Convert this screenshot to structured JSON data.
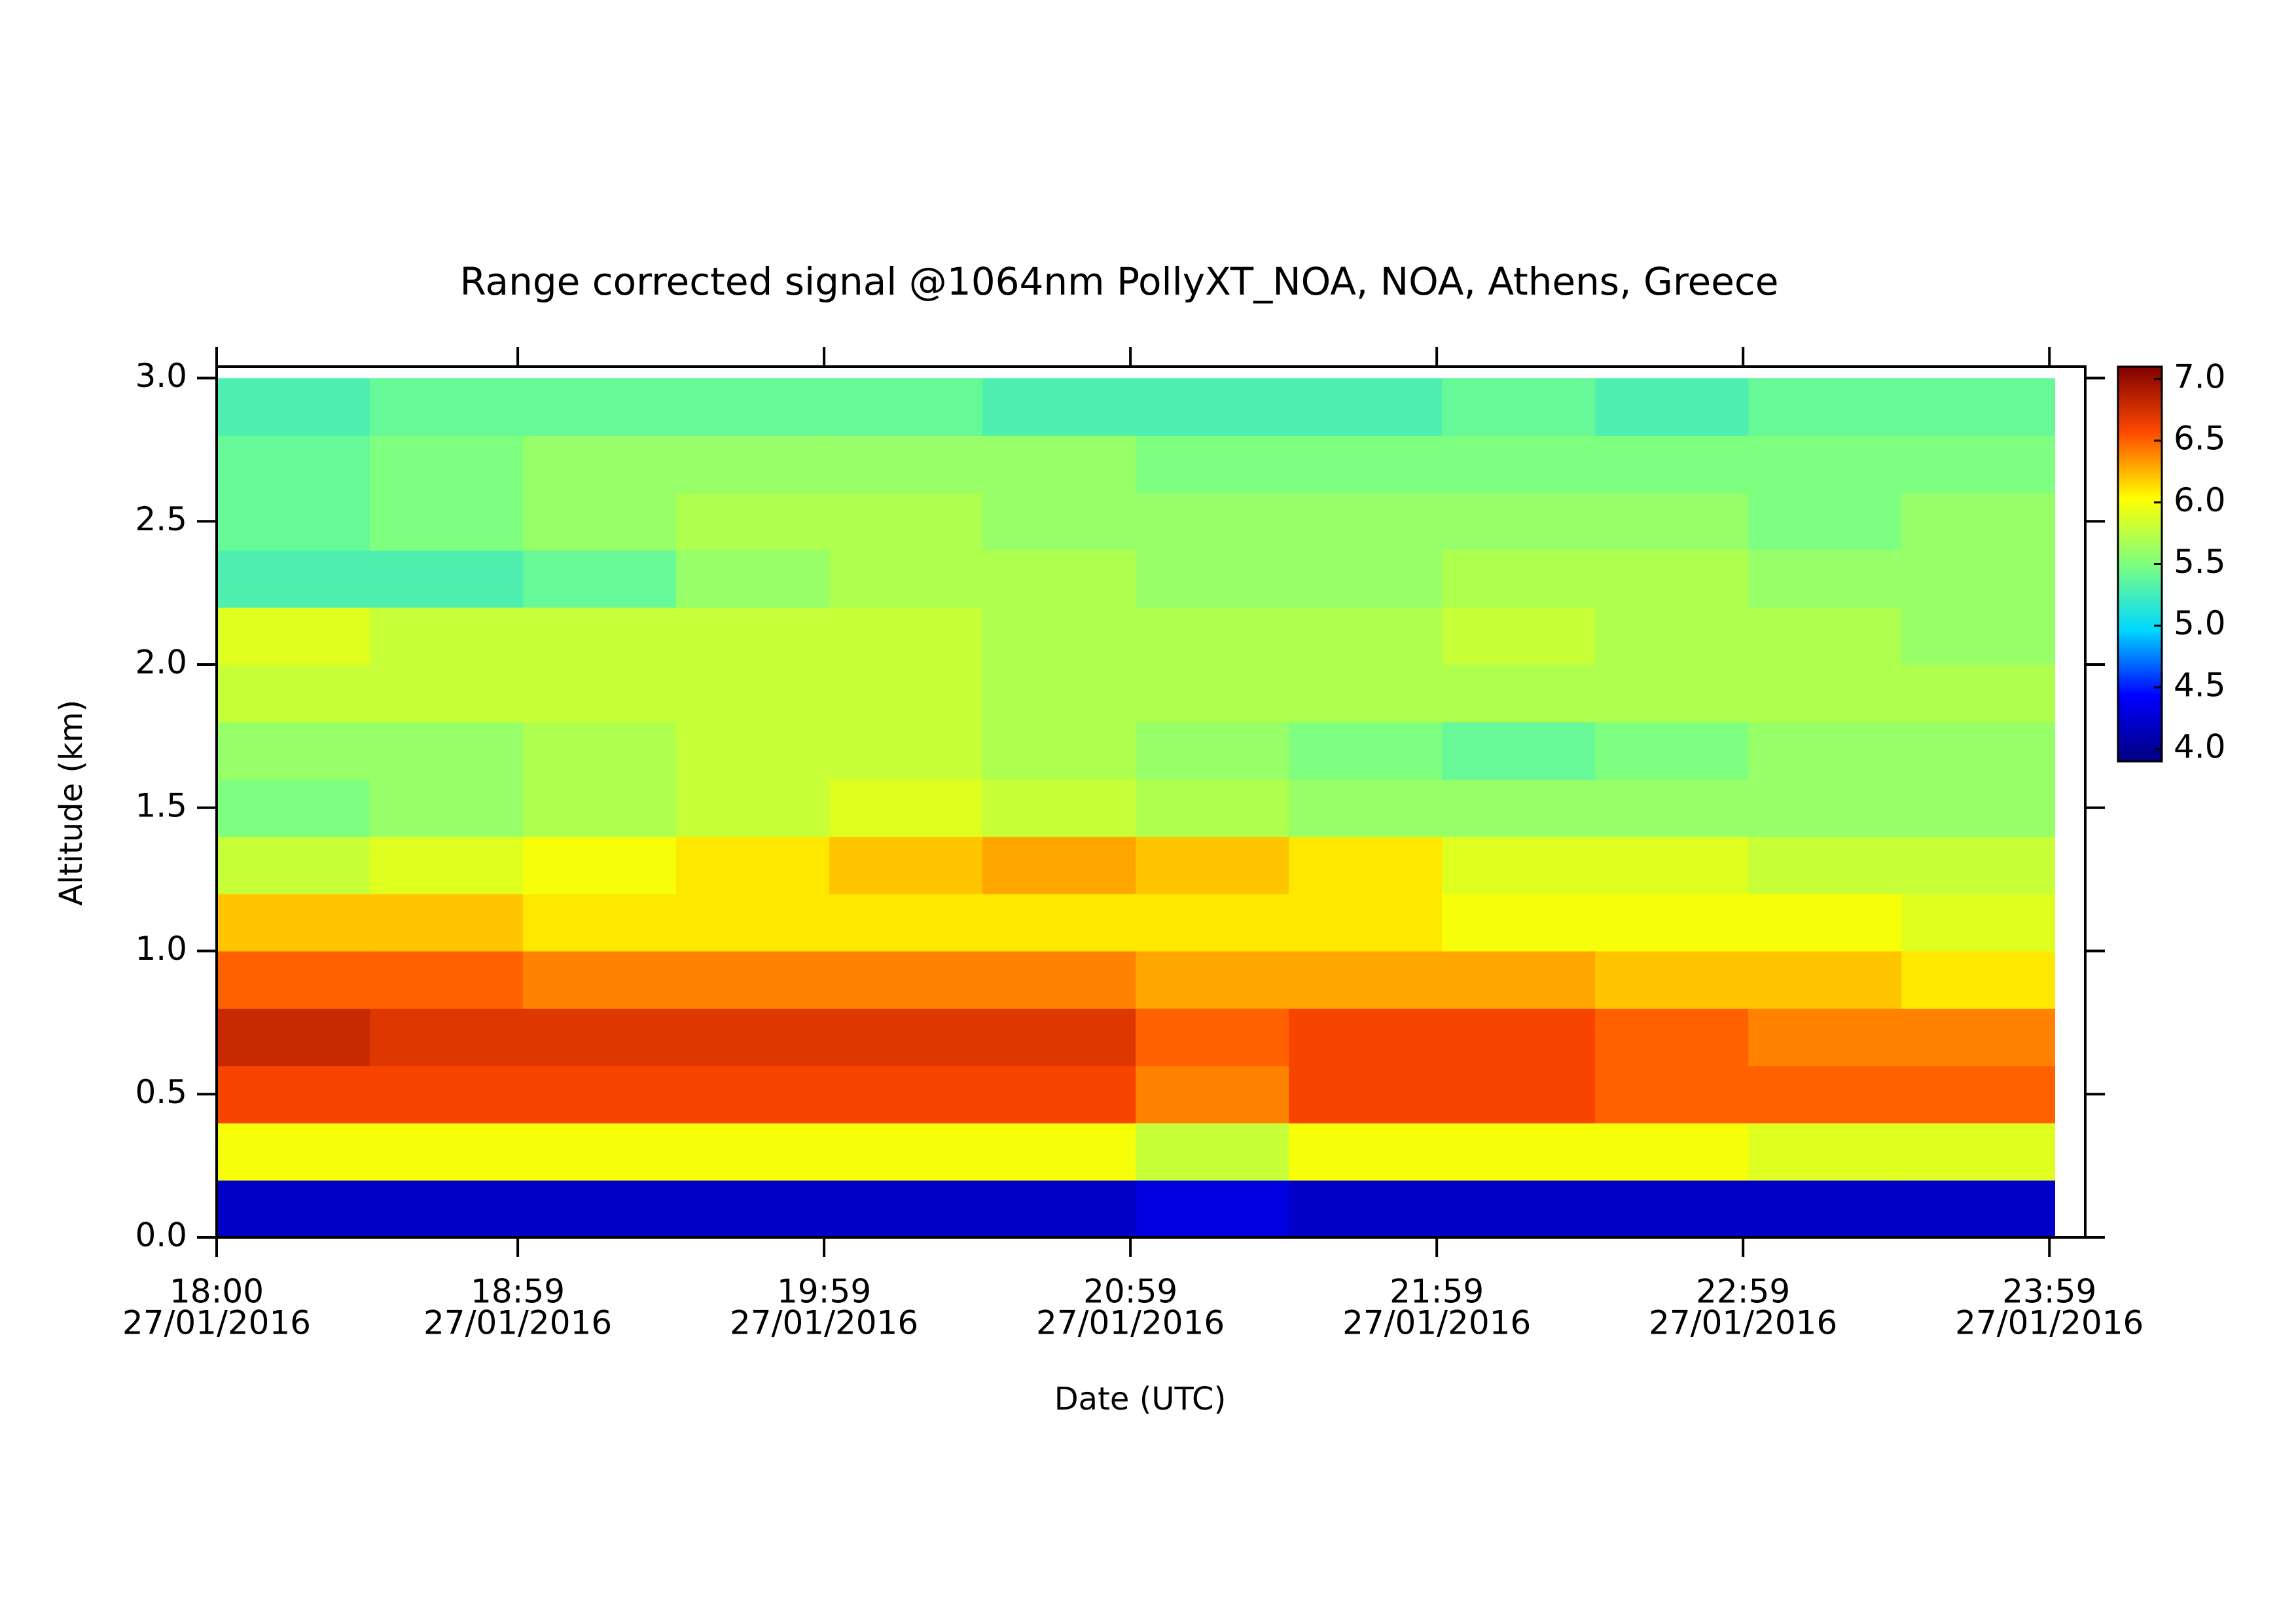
{
  "chart_data": {
    "type": "heatmap",
    "title": "Range corrected signal @1064nm  PollyXT_NOA, NOA, Athens, Greece",
    "x_label": "Date (UTC)",
    "y_label": "Altitude (km)",
    "x": [
      18.25,
      18.75,
      19.25,
      19.75,
      20.25,
      20.75,
      21.25,
      21.75,
      22.25,
      22.75,
      23.25,
      23.75
    ],
    "y": [
      0.1,
      0.3,
      0.5,
      0.7,
      0.9,
      1.1,
      1.3,
      1.5,
      1.7,
      1.9,
      2.1,
      2.3,
      2.5,
      2.7,
      2.9
    ],
    "z": [
      [
        4.2,
        4.2,
        4.2,
        4.2,
        4.2,
        4.2,
        4.3,
        4.2,
        4.2,
        4.2,
        4.2,
        4.2
      ],
      [
        6.0,
        6.0,
        6.0,
        6.0,
        6.0,
        6.0,
        5.8,
        6.0,
        6.0,
        6.0,
        5.9,
        5.9
      ],
      [
        6.6,
        6.6,
        6.6,
        6.6,
        6.6,
        6.6,
        6.4,
        6.6,
        6.6,
        6.5,
        6.5,
        6.5
      ],
      [
        6.8,
        6.7,
        6.7,
        6.7,
        6.7,
        6.7,
        6.5,
        6.6,
        6.6,
        6.5,
        6.4,
        6.4
      ],
      [
        6.5,
        6.5,
        6.4,
        6.4,
        6.4,
        6.4,
        6.3,
        6.3,
        6.3,
        6.2,
        6.2,
        6.1
      ],
      [
        6.2,
        6.2,
        6.1,
        6.1,
        6.1,
        6.1,
        6.1,
        6.1,
        6.0,
        6.0,
        6.0,
        5.9
      ],
      [
        5.8,
        5.9,
        6.0,
        6.1,
        6.2,
        6.3,
        6.2,
        6.1,
        5.9,
        5.9,
        5.8,
        5.8
      ],
      [
        5.5,
        5.6,
        5.7,
        5.8,
        5.9,
        5.8,
        5.7,
        5.6,
        5.6,
        5.6,
        5.6,
        5.6
      ],
      [
        5.6,
        5.6,
        5.7,
        5.8,
        5.8,
        5.7,
        5.6,
        5.5,
        5.4,
        5.5,
        5.6,
        5.6
      ],
      [
        5.8,
        5.8,
        5.8,
        5.8,
        5.8,
        5.7,
        5.7,
        5.7,
        5.7,
        5.7,
        5.7,
        5.7
      ],
      [
        5.9,
        5.8,
        5.8,
        5.8,
        5.8,
        5.7,
        5.7,
        5.7,
        5.8,
        5.7,
        5.7,
        5.6
      ],
      [
        5.3,
        5.3,
        5.4,
        5.6,
        5.7,
        5.7,
        5.6,
        5.6,
        5.7,
        5.7,
        5.6,
        5.6
      ],
      [
        5.4,
        5.5,
        5.6,
        5.7,
        5.7,
        5.6,
        5.6,
        5.6,
        5.6,
        5.6,
        5.5,
        5.6
      ],
      [
        5.4,
        5.5,
        5.6,
        5.6,
        5.6,
        5.6,
        5.5,
        5.5,
        5.5,
        5.5,
        5.5,
        5.5
      ],
      [
        5.3,
        5.4,
        5.4,
        5.4,
        5.4,
        5.3,
        5.3,
        5.3,
        5.4,
        5.3,
        5.4,
        5.4
      ]
    ],
    "xlim": [
      18,
      24.1
    ],
    "ylim": [
      0,
      3.04
    ],
    "zlim": [
      3.9,
      7.1
    ],
    "xticks": [
      {
        "value": 18.0,
        "label": "18:00",
        "date": "27/01/2016"
      },
      {
        "value": 18.983,
        "label": "18:59",
        "date": "27/01/2016"
      },
      {
        "value": 19.983,
        "label": "19:59",
        "date": "27/01/2016"
      },
      {
        "value": 20.983,
        "label": "20:59",
        "date": "27/01/2016"
      },
      {
        "value": 21.983,
        "label": "21:59",
        "date": "27/01/2016"
      },
      {
        "value": 22.983,
        "label": "22:59",
        "date": "27/01/2016"
      },
      {
        "value": 23.983,
        "label": "23:59",
        "date": "27/01/2016"
      }
    ],
    "yticks": [
      {
        "value": 0,
        "label": "0.0"
      },
      {
        "value": 0.5,
        "label": "0.5"
      },
      {
        "value": 1,
        "label": "1.0"
      },
      {
        "value": 1.5,
        "label": "1.5"
      },
      {
        "value": 2,
        "label": "2.0"
      },
      {
        "value": 2.5,
        "label": "2.5"
      },
      {
        "value": 3,
        "label": "3.0"
      }
    ],
    "zticks": [
      {
        "value": 4,
        "label": "4.0"
      },
      {
        "value": 4.5,
        "label": "4.5"
      },
      {
        "value": 5,
        "label": "5.0"
      },
      {
        "value": 5.5,
        "label": "5.5"
      },
      {
        "value": 6,
        "label": "6.0"
      },
      {
        "value": 6.5,
        "label": "6.5"
      },
      {
        "value": 7,
        "label": "7.0"
      }
    ],
    "colormap": [
      "#00007f",
      "#0000ff",
      "#00d8ff",
      "#7fff7f",
      "#ffff00",
      "#ff4a00",
      "#800000"
    ]
  }
}
